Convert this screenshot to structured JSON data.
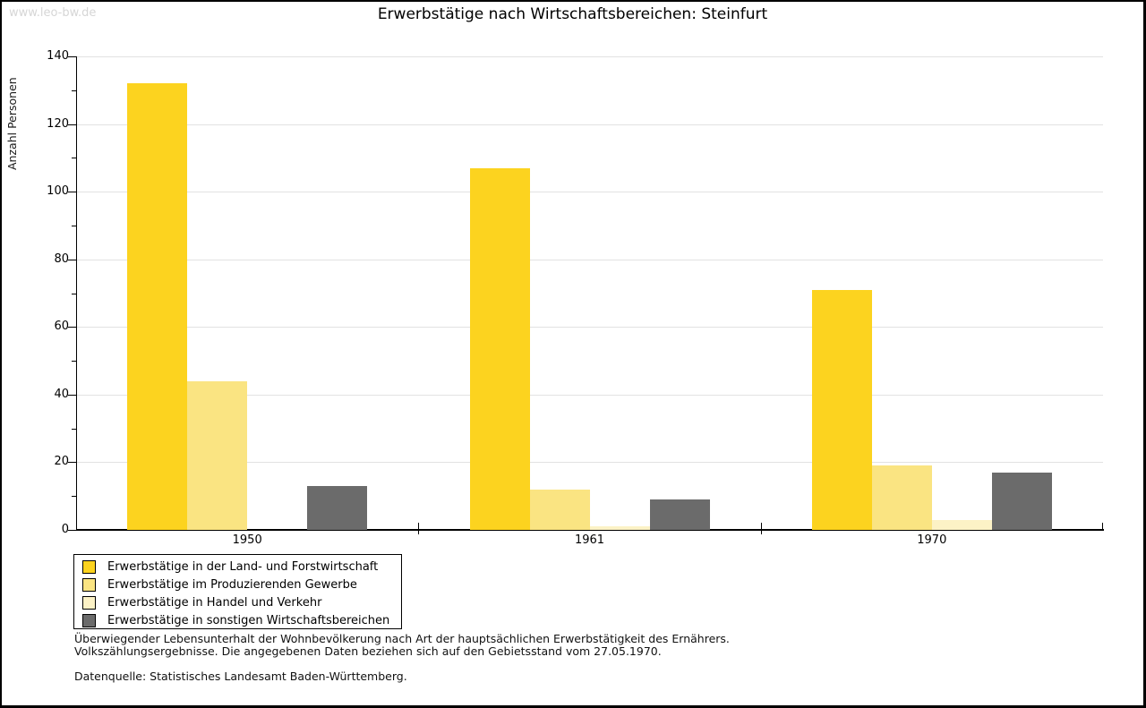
{
  "watermark": "www.leo-bw.de",
  "title": "Erwerbstätige nach Wirtschaftsbereichen: Steinfurt",
  "chart_data": {
    "type": "bar",
    "title": "Erwerbstätige nach Wirtschaftsbereichen: Steinfurt",
    "xlabel": "",
    "ylabel": "Anzahl Personen",
    "categories": [
      "1950",
      "1961",
      "1970"
    ],
    "series": [
      {
        "name": "Erwerbstätige in der Land- und Forstwirtschaft",
        "color": "#FCD31F",
        "values": [
          132,
          107,
          71
        ]
      },
      {
        "name": "Erwerbstätige im Produzierenden Gewerbe",
        "color": "#FAE482",
        "values": [
          44,
          12,
          19
        ]
      },
      {
        "name": "Erwerbstätige in Handel und Verkehr",
        "color": "#FCF2C6",
        "values": [
          0,
          1,
          3
        ]
      },
      {
        "name": "Erwerbstätige in sonstigen Wirtschaftsbereichen",
        "color": "#6B6B6B",
        "values": [
          13,
          9,
          17
        ]
      }
    ],
    "ylim": [
      0,
      140
    ],
    "y_major_step": 20,
    "y_minor_step": 10,
    "grid": true,
    "legend_position": "bottom-left"
  },
  "footnotes": {
    "line1": "Überwiegender Lebensunterhalt der Wohnbevölkerung nach Art der hauptsächlichen Erwerbstätigkeit des Ernährers.",
    "line2": "Volkszählungsergebnisse. Die angegebenen Daten beziehen sich auf den Gebietsstand vom 27.05.1970.",
    "source": "Datenquelle: Statistisches Landesamt Baden-Württemberg."
  },
  "colors": {
    "gridline": "#E2E2E2",
    "axis": "#000000",
    "watermark": "#D6D6D6",
    "background": "#FFFFFF"
  }
}
